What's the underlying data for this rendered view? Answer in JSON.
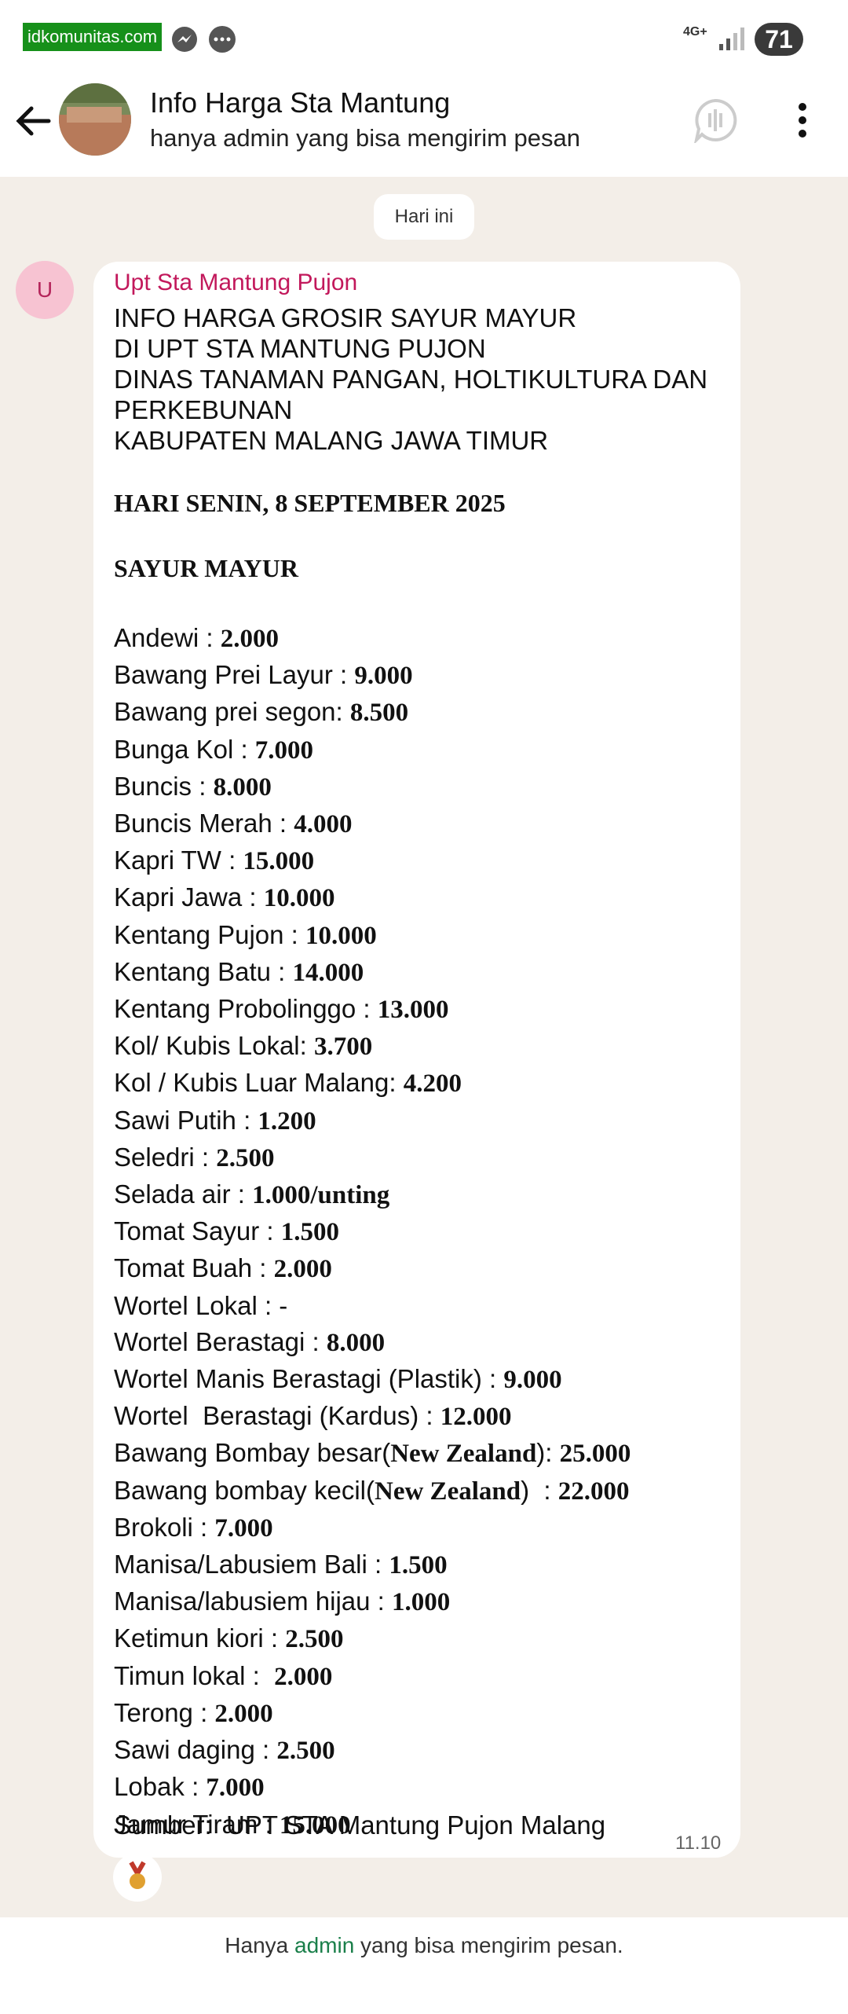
{
  "status_bar": {
    "watermark": "idkomunitas.com",
    "network": "4G+",
    "battery": "71"
  },
  "header": {
    "title": "Info Harga Sta Mantung",
    "subtitle": "hanya admin yang bisa mengirim pesan"
  },
  "date_chip": "Hari ini",
  "message": {
    "avatar": "U",
    "sender": "Upt Sta Mantung Pujon",
    "heading": [
      "INFO HARGA GROSIR SAYUR MAYUR",
      "DI UPT STA MANTUNG PUJON",
      "DINAS TANAMAN PANGAN, HOLTIKULTURA DAN PERKEBUNAN",
      "KABUPATEN MALANG JAWA TIMUR"
    ],
    "date_line": "HARI SENIN, 8 SEPTEMBER 2025",
    "section": "SAYUR MAYUR",
    "items": [
      [
        "Andewi : ",
        "2.000"
      ],
      [
        "Bawang Prei Layur : ",
        "9.000"
      ],
      [
        "Bawang prei segon: ",
        "8.500"
      ],
      [
        "Bunga Kol : ",
        "7.000"
      ],
      [
        "Buncis : ",
        "8.000"
      ],
      [
        "Buncis Merah : ",
        "4.000"
      ],
      [
        "Kapri TW : ",
        "15.000"
      ],
      [
        "Kapri Jawa : ",
        "10.000"
      ],
      [
        "Kentang Pujon : ",
        "10.000"
      ],
      [
        "Kentang Batu : ",
        "14.000"
      ],
      [
        "Kentang Probolinggo : ",
        "13.000"
      ],
      [
        "Kol/ Kubis Lokal: ",
        "3.700"
      ],
      [
        "Kol / Kubis Luar Malang: ",
        "4.200"
      ],
      [
        "Sawi Putih : ",
        "1.200"
      ],
      [
        "Seledri : ",
        "2.500"
      ],
      [
        "Selada air : ",
        "1.000/unting"
      ],
      [
        "Tomat Sayur : ",
        "1.500"
      ],
      [
        "Tomat Buah : ",
        "2.000"
      ],
      [
        "Wortel Lokal : -"
      ],
      [
        "Wortel Berastagi : ",
        "8.000"
      ],
      [
        "Wortel Manis Berastagi (Plastik) : ",
        "9.000"
      ],
      [
        "Wortel  Berastagi (Kardus) : ",
        "12.000"
      ],
      [
        "Bawang Bombay besar(",
        "New Zealand",
        "): ",
        "25.000"
      ],
      [
        "Bawang bombay kecil(",
        "New Zealand",
        ")  : ",
        "22.000"
      ],
      [
        "Brokoli : ",
        "7.000"
      ],
      [
        "Manisa/Labusiem Bali : ",
        "1.500"
      ],
      [
        "Manisa/labusiem hijau : ",
        "1.000"
      ],
      [
        "Ketimun kiori : ",
        "2.500"
      ],
      [
        "Timun lokal :  ",
        "2.000"
      ],
      [
        "Terong : ",
        "2.000"
      ],
      [
        "Sawi daging : ",
        "2.500"
      ],
      [
        "Lobak : ",
        "7.000"
      ],
      [
        "Jamur Tiram : ",
        "15.000"
      ]
    ],
    "source": "Sumber:  UPT STA Mantung Pujon Malang",
    "time": "11.10"
  },
  "footer": {
    "before": "Hanya ",
    "link": "admin",
    "after": " yang bisa mengirim pesan."
  }
}
